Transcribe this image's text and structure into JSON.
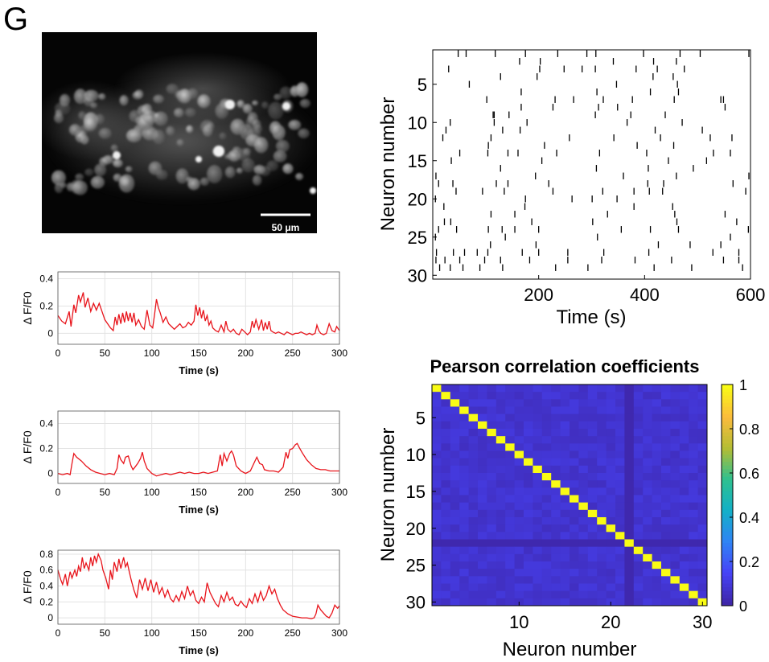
{
  "panel_label": "G",
  "micrograph": {
    "scale_bar_label": "50 μm"
  },
  "chart_data": [
    {
      "type": "line",
      "title": "",
      "xlabel": "Time (s)",
      "ylabel": "Δ F/F0",
      "xlim": [
        0,
        300
      ],
      "ylim": [
        -0.08,
        0.45
      ],
      "xticks": [
        0,
        50,
        100,
        150,
        200,
        250,
        300
      ],
      "yticks": [
        0,
        0.2,
        0.4
      ],
      "grid": true,
      "color": "#e8141b",
      "series": [
        {
          "x": [
            0,
            4,
            8,
            12,
            14,
            17,
            19,
            22,
            24,
            27,
            29,
            32,
            35,
            38,
            41,
            44,
            47,
            50,
            53,
            56,
            59,
            61,
            63,
            65,
            67,
            69,
            71,
            73,
            75,
            77,
            79,
            81,
            83,
            86,
            89,
            92,
            95,
            98,
            101,
            103,
            105,
            107,
            109,
            112,
            115,
            118,
            121,
            124,
            127,
            130,
            133,
            136,
            139,
            142,
            145,
            147,
            149,
            151,
            153,
            155,
            157,
            159,
            161,
            163,
            165,
            168,
            171,
            174,
            177,
            179,
            181,
            184,
            187,
            190,
            193,
            196,
            199,
            202,
            205,
            207,
            209,
            211,
            214,
            217,
            219,
            221,
            223,
            225,
            227,
            229,
            232,
            235,
            238,
            241,
            244,
            247,
            250,
            253,
            256,
            259,
            262,
            265,
            268,
            271,
            274,
            276,
            278,
            280,
            283,
            286,
            289,
            292,
            295,
            297,
            300
          ],
          "y": [
            0.13,
            0.09,
            0.07,
            0.16,
            0.05,
            0.21,
            0.15,
            0.28,
            0.23,
            0.3,
            0.19,
            0.26,
            0.16,
            0.22,
            0.17,
            0.22,
            0.16,
            0.1,
            0.07,
            0.04,
            0.02,
            0.12,
            0.06,
            0.14,
            0.07,
            0.15,
            0.08,
            0.16,
            0.09,
            0.15,
            0.08,
            0.15,
            0.06,
            0.1,
            0.05,
            0.03,
            0.17,
            0.06,
            0.04,
            0.14,
            0.25,
            0.19,
            0.15,
            0.08,
            0.12,
            0.07,
            0.05,
            0.03,
            0.05,
            0.07,
            0.04,
            0.05,
            0.08,
            0.06,
            0.09,
            0.21,
            0.13,
            0.19,
            0.11,
            0.17,
            0.09,
            0.13,
            0.06,
            0.09,
            0.04,
            0.02,
            0.01,
            0.06,
            0.01,
            0.09,
            0.03,
            0.01,
            0.03,
            0.0,
            -0.01,
            0.03,
            0.01,
            -0.01,
            0.01,
            0.09,
            0.04,
            0.1,
            0.03,
            0.1,
            0.02,
            0.08,
            0.03,
            0.09,
            0.02,
            0.01,
            0.0,
            0.01,
            0.0,
            -0.01,
            0.01,
            0.0,
            -0.01,
            0.0,
            0.0,
            0.01,
            0.0,
            -0.01,
            0.0,
            -0.01,
            0.0,
            0.06,
            0.02,
            0.0,
            -0.01,
            0.0,
            0.07,
            0.02,
            0.01,
            0.05,
            0.02
          ]
        }
      ]
    },
    {
      "type": "line",
      "title": "",
      "xlabel": "Time (s)",
      "ylabel": "Δ F/F0",
      "xlim": [
        0,
        300
      ],
      "ylim": [
        -0.08,
        0.5
      ],
      "xticks": [
        0,
        50,
        100,
        150,
        200,
        250,
        300
      ],
      "yticks": [
        0,
        0.2,
        0.4
      ],
      "grid": true,
      "color": "#e8141b",
      "series": [
        {
          "x": [
            0,
            5,
            10,
            13,
            15,
            17,
            20,
            25,
            30,
            35,
            40,
            45,
            50,
            55,
            60,
            63,
            65,
            67,
            70,
            72,
            75,
            78,
            80,
            82,
            85,
            88,
            90,
            92,
            95,
            100,
            105,
            110,
            115,
            120,
            125,
            130,
            135,
            140,
            145,
            150,
            155,
            160,
            165,
            170,
            173,
            175,
            177,
            180,
            183,
            185,
            187,
            190,
            195,
            200,
            205,
            210,
            212,
            215,
            218,
            220,
            225,
            230,
            235,
            240,
            243,
            245,
            247,
            250,
            253,
            255,
            257,
            260,
            265,
            270,
            275,
            280,
            285,
            290,
            295,
            300
          ],
          "y": [
            0.0,
            -0.01,
            0.0,
            -0.01,
            0.08,
            0.16,
            0.13,
            0.1,
            0.06,
            0.03,
            0.01,
            0.0,
            -0.01,
            0.0,
            -0.01,
            0.04,
            0.15,
            0.11,
            0.08,
            0.13,
            0.14,
            0.06,
            0.03,
            0.05,
            0.08,
            0.12,
            0.17,
            0.1,
            0.04,
            0.0,
            -0.02,
            -0.01,
            0.0,
            -0.01,
            0.0,
            0.01,
            0.0,
            0.01,
            0.0,
            0.0,
            0.01,
            0.0,
            0.01,
            0.02,
            0.15,
            0.06,
            0.16,
            0.1,
            0.16,
            0.18,
            0.15,
            0.06,
            0.02,
            0.0,
            0.02,
            0.1,
            0.13,
            0.08,
            0.07,
            0.03,
            0.02,
            0.02,
            0.01,
            0.05,
            0.17,
            0.12,
            0.19,
            0.2,
            0.23,
            0.24,
            0.21,
            0.17,
            0.11,
            0.07,
            0.04,
            0.03,
            0.03,
            0.02,
            0.02,
            0.02
          ]
        }
      ]
    },
    {
      "type": "line",
      "title": "",
      "xlabel": "Time (s)",
      "ylabel": "Δ F/F0",
      "xlim": [
        0,
        300
      ],
      "ylim": [
        -0.08,
        0.85
      ],
      "xticks": [
        0,
        50,
        100,
        150,
        200,
        250,
        300
      ],
      "yticks": [
        0,
        0.2,
        0.4,
        0.6,
        0.8
      ],
      "grid": true,
      "color": "#e8141b",
      "series": [
        {
          "x": [
            0,
            3,
            5,
            8,
            10,
            13,
            15,
            18,
            20,
            22,
            24,
            26,
            28,
            30,
            33,
            35,
            37,
            39,
            41,
            43,
            46,
            48,
            51,
            54,
            56,
            58,
            60,
            63,
            65,
            67,
            70,
            72,
            74,
            76,
            78,
            81,
            84,
            87,
            90,
            93,
            96,
            99,
            102,
            105,
            108,
            111,
            114,
            117,
            120,
            123,
            126,
            129,
            132,
            135,
            138,
            141,
            144,
            147,
            150,
            153,
            156,
            159,
            162,
            165,
            168,
            171,
            174,
            177,
            180,
            183,
            186,
            189,
            192,
            195,
            198,
            201,
            204,
            207,
            210,
            213,
            216,
            219,
            222,
            225,
            228,
            231,
            234,
            237,
            240,
            245,
            250,
            255,
            260,
            265,
            270,
            273,
            275,
            277,
            280,
            283,
            286,
            289,
            292,
            295,
            298,
            300
          ],
          "y": [
            0.6,
            0.48,
            0.42,
            0.55,
            0.4,
            0.58,
            0.5,
            0.6,
            0.52,
            0.65,
            0.58,
            0.76,
            0.62,
            0.69,
            0.6,
            0.76,
            0.65,
            0.78,
            0.7,
            0.8,
            0.72,
            0.6,
            0.5,
            0.36,
            0.6,
            0.48,
            0.7,
            0.58,
            0.74,
            0.62,
            0.76,
            0.64,
            0.69,
            0.58,
            0.48,
            0.35,
            0.25,
            0.48,
            0.36,
            0.5,
            0.34,
            0.48,
            0.32,
            0.45,
            0.3,
            0.38,
            0.26,
            0.35,
            0.24,
            0.2,
            0.28,
            0.21,
            0.33,
            0.24,
            0.4,
            0.28,
            0.34,
            0.22,
            0.18,
            0.26,
            0.2,
            0.44,
            0.32,
            0.25,
            0.18,
            0.14,
            0.28,
            0.2,
            0.32,
            0.22,
            0.26,
            0.17,
            0.15,
            0.21,
            0.16,
            0.13,
            0.24,
            0.18,
            0.3,
            0.2,
            0.33,
            0.22,
            0.28,
            0.4,
            0.3,
            0.36,
            0.24,
            0.16,
            0.1,
            0.05,
            0.02,
            0.01,
            0.0,
            0.0,
            -0.01,
            0.0,
            0.05,
            0.16,
            0.1,
            0.06,
            0.02,
            0.0,
            0.06,
            0.16,
            0.12,
            0.15
          ]
        }
      ]
    },
    {
      "type": "scatter",
      "title": "",
      "xlabel": "Time (s)",
      "ylabel": "Neuron number",
      "xlim": [
        0,
        600
      ],
      "ylim": [
        30.5,
        0.5
      ],
      "xticks": [
        200,
        400,
        600
      ],
      "yticks": [
        5,
        10,
        15,
        20,
        25,
        30
      ],
      "grid": false,
      "marker": "vertical-tick",
      "series": [
        {
          "x": [
            48,
            63,
            118,
            175,
            236,
            291,
            308,
            398,
            467,
            505,
            597,
            164,
            203,
            341,
            417,
            460,
            30,
            202,
            248,
            282,
            307,
            384,
            424,
            475,
            128,
            197,
            416,
            454,
            69,
            347,
            462,
            167,
            310,
            411,
            464,
            102,
            231,
            266,
            322,
            377,
            456,
            544,
            549,
            167,
            227,
            313,
            349,
            552,
            114,
            116,
            144,
            307,
            374,
            439,
            33,
            116,
            178,
            367,
            471,
            25,
            132,
            165,
            420,
            509,
            19,
            110,
            258,
            342,
            430,
            524,
            565,
            105,
            211,
            386,
            455,
            51,
            104,
            142,
            161,
            234,
            315,
            404,
            530,
            562,
            35,
            206,
            445,
            517,
            128,
            309,
            407,
            492,
            6,
            194,
            360,
            460,
            597,
            11,
            38,
            120,
            142,
            219,
            406,
            436,
            567,
            44,
            94,
            135,
            227,
            321,
            380,
            409,
            434,
            591,
            5,
            175,
            263,
            301,
            348,
            21,
            174,
            380,
            453,
            110,
            155,
            330,
            457,
            552,
            22,
            34,
            187,
            302,
            461,
            574,
            11,
            45,
            105,
            131,
            155,
            200,
            356,
            411,
            464,
            596,
            5,
            137,
            311,
            562,
            109,
            195,
            426,
            486,
            544,
            7,
            39,
            60,
            84,
            104,
            169,
            200,
            255,
            323,
            408,
            529,
            578,
            6,
            23,
            51,
            98,
            128,
            183,
            255,
            319,
            382,
            451,
            549,
            578,
            13,
            33,
            57,
            89,
            132,
            232,
            293,
            418,
            489,
            585
          ],
          "y": [
            1,
            1,
            1,
            1,
            1,
            1,
            1,
            1,
            1,
            1,
            1,
            2,
            2,
            2,
            2,
            2,
            3,
            3,
            3,
            3,
            3,
            3,
            3,
            3,
            4,
            4,
            4,
            4,
            5,
            5,
            5,
            6,
            6,
            6,
            6,
            7,
            7,
            7,
            7,
            7,
            7,
            7,
            7,
            8,
            8,
            8,
            8,
            8,
            9,
            9,
            9,
            9,
            9,
            9,
            10,
            10,
            10,
            10,
            10,
            11,
            11,
            11,
            11,
            11,
            12,
            12,
            12,
            12,
            12,
            12,
            12,
            13,
            13,
            13,
            13,
            14,
            14,
            14,
            14,
            14,
            14,
            14,
            14,
            14,
            15,
            15,
            15,
            15,
            16,
            16,
            16,
            16,
            17,
            17,
            17,
            17,
            17,
            18,
            18,
            18,
            18,
            18,
            18,
            18,
            18,
            19,
            19,
            19,
            19,
            19,
            19,
            19,
            19,
            19,
            20,
            20,
            20,
            20,
            20,
            21,
            21,
            21,
            21,
            22,
            22,
            22,
            22,
            22,
            23,
            23,
            23,
            23,
            23,
            23,
            24,
            24,
            24,
            24,
            24,
            24,
            24,
            24,
            24,
            24,
            25,
            25,
            25,
            25,
            26,
            26,
            26,
            26,
            26,
            27,
            27,
            27,
            27,
            27,
            27,
            27,
            27,
            27,
            27,
            27,
            27,
            28,
            28,
            28,
            28,
            28,
            28,
            28,
            28,
            28,
            28,
            28,
            28,
            29,
            29,
            29,
            29,
            29,
            29,
            29,
            29,
            29,
            29
          ]
        }
      ]
    },
    {
      "type": "heatmap",
      "title": "Pearson correlation coefficients",
      "xlabel": "Neuron number",
      "ylabel": "Neuron number",
      "xticks": [
        10,
        20,
        30
      ],
      "yticks": [
        5,
        10,
        15,
        20,
        25,
        30
      ],
      "n_neurons": 30,
      "diagonal_value": 1,
      "off_diagonal_value": 0.07,
      "low_rows_and_columns": [
        22
      ],
      "low_value": 0.01,
      "colorbar": {
        "range": [
          0,
          1
        ],
        "ticks": [
          0,
          0.2,
          0.4,
          0.6,
          0.8,
          1
        ]
      },
      "colormap": [
        "#3e26a8",
        "#4743f8",
        "#2f84f5",
        "#13b0c7",
        "#2ec08f",
        "#b4bd34",
        "#fbbb3c",
        "#f9fb15"
      ]
    }
  ]
}
